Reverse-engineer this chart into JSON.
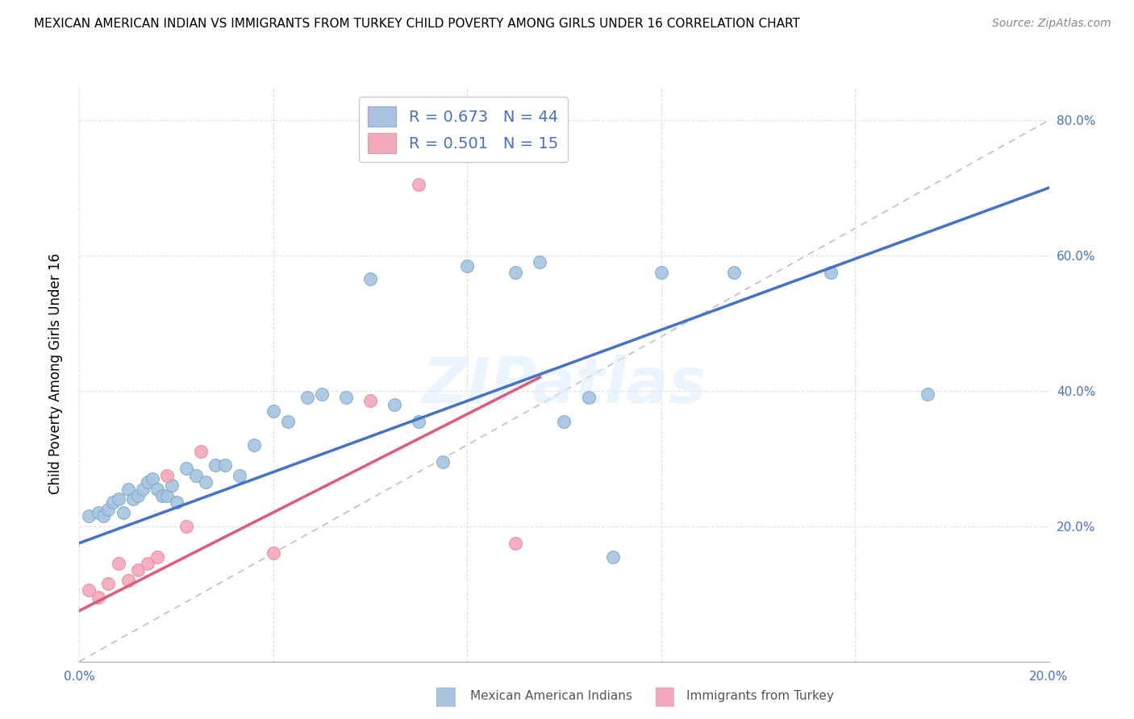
{
  "title": "MEXICAN AMERICAN INDIAN VS IMMIGRANTS FROM TURKEY CHILD POVERTY AMONG GIRLS UNDER 16 CORRELATION CHART",
  "source": "Source: ZipAtlas.com",
  "ylabel": "Child Poverty Among Girls Under 16",
  "xlim": [
    0.0,
    0.2
  ],
  "ylim": [
    0.0,
    0.85
  ],
  "x_ticks": [
    0.0,
    0.04,
    0.08,
    0.12,
    0.16,
    0.2
  ],
  "y_ticks": [
    0.0,
    0.2,
    0.4,
    0.6,
    0.8
  ],
  "y_tick_labels": [
    "",
    "20.0%",
    "40.0%",
    "60.0%",
    "80.0%"
  ],
  "x_tick_labels": [
    "0.0%",
    "",
    "",
    "",
    "",
    "20.0%"
  ],
  "blue_R": 0.673,
  "blue_N": 44,
  "pink_R": 0.501,
  "pink_N": 15,
  "blue_color": "#a8c4e0",
  "pink_color": "#f4a8bb",
  "blue_edge_color": "#7aaace",
  "pink_edge_color": "#e88aa0",
  "blue_line_color": "#4472c4",
  "pink_line_color": "#e05a7a",
  "watermark": "ZIPatlas",
  "blue_scatter_x": [
    0.002,
    0.004,
    0.005,
    0.006,
    0.007,
    0.008,
    0.009,
    0.01,
    0.011,
    0.012,
    0.013,
    0.014,
    0.015,
    0.016,
    0.017,
    0.018,
    0.019,
    0.02,
    0.022,
    0.024,
    0.026,
    0.028,
    0.03,
    0.033,
    0.036,
    0.04,
    0.043,
    0.047,
    0.05,
    0.055,
    0.06,
    0.065,
    0.07,
    0.075,
    0.08,
    0.09,
    0.095,
    0.1,
    0.105,
    0.11,
    0.12,
    0.135,
    0.155,
    0.175
  ],
  "blue_scatter_y": [
    0.215,
    0.22,
    0.215,
    0.225,
    0.235,
    0.24,
    0.22,
    0.255,
    0.24,
    0.245,
    0.255,
    0.265,
    0.27,
    0.255,
    0.245,
    0.245,
    0.26,
    0.235,
    0.285,
    0.275,
    0.265,
    0.29,
    0.29,
    0.275,
    0.32,
    0.37,
    0.355,
    0.39,
    0.395,
    0.39,
    0.565,
    0.38,
    0.355,
    0.295,
    0.585,
    0.575,
    0.59,
    0.355,
    0.39,
    0.155,
    0.575,
    0.575,
    0.575,
    0.395
  ],
  "pink_scatter_x": [
    0.002,
    0.004,
    0.006,
    0.008,
    0.01,
    0.012,
    0.014,
    0.016,
    0.018,
    0.022,
    0.025,
    0.04,
    0.06,
    0.07,
    0.09
  ],
  "pink_scatter_y": [
    0.105,
    0.095,
    0.115,
    0.145,
    0.12,
    0.135,
    0.145,
    0.155,
    0.275,
    0.2,
    0.31,
    0.16,
    0.385,
    0.705,
    0.175
  ],
  "blue_line_x0": 0.0,
  "blue_line_x1": 0.2,
  "blue_line_y0": 0.175,
  "blue_line_y1": 0.7,
  "pink_line_x0": 0.0,
  "pink_line_x1": 0.095,
  "pink_line_y0": 0.075,
  "pink_line_y1": 0.42,
  "diag_line_x0": 0.0,
  "diag_line_x1": 0.2,
  "diag_line_y0": 0.0,
  "diag_line_y1": 0.8,
  "grid_color": "#e0e0e0",
  "legend_label_blue": "R = 0.673   N = 44",
  "legend_label_pink": "R = 0.501   N = 15",
  "bottom_label_blue": "Mexican American Indians",
  "bottom_label_pink": "Immigrants from Turkey"
}
